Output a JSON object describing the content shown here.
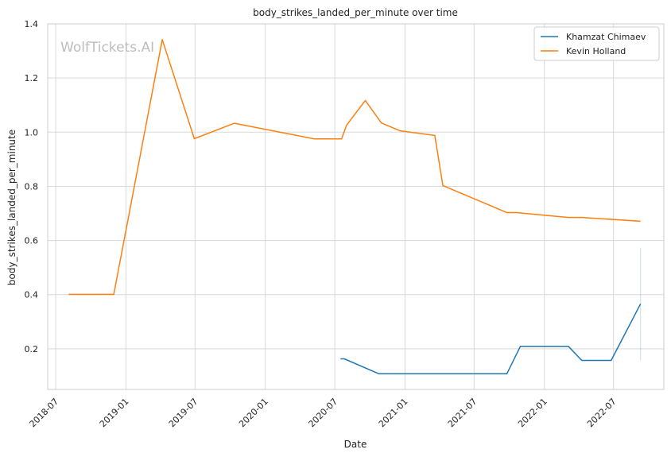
{
  "chart_data": {
    "type": "line",
    "title": "body_strikes_landed_per_minute over time",
    "xlabel": "Date",
    "ylabel": "body_strikes_landed_per_minute",
    "watermark": "WolfTickets.AI",
    "xlim": [
      "2018-06-10",
      "2022-11-10"
    ],
    "ylim": [
      0.05,
      1.4
    ],
    "x_ticks": [
      "2018-07",
      "2019-01",
      "2019-07",
      "2020-01",
      "2020-07",
      "2021-01",
      "2021-07",
      "2022-01",
      "2022-07"
    ],
    "y_ticks": [
      0.2,
      0.4,
      0.6,
      0.8,
      1.0,
      1.2,
      1.4
    ],
    "y_tick_labels": [
      "0.2",
      "0.4",
      "0.6",
      "0.8",
      "1.0",
      "1.2",
      "1.4"
    ],
    "grid": true,
    "legend_position": "top-right",
    "series": [
      {
        "name": "Khamzat Chimaev",
        "color": "#1f77b4",
        "points": [
          {
            "x": "2020-07-16",
            "y": 0.163
          },
          {
            "x": "2020-07-26",
            "y": 0.163
          },
          {
            "x": "2020-10-24",
            "y": 0.108
          },
          {
            "x": "2021-09-25",
            "y": 0.108
          },
          {
            "x": "2021-10-30",
            "y": 0.209
          },
          {
            "x": "2022-03-05",
            "y": 0.209
          },
          {
            "x": "2022-04-09",
            "y": 0.157
          },
          {
            "x": "2022-06-25",
            "y": 0.157
          },
          {
            "x": "2022-09-10",
            "y": 0.366
          }
        ]
      },
      {
        "name": "Kevin Holland",
        "color": "#ff7f0e",
        "points": [
          {
            "x": "2018-08-04",
            "y": 0.401
          },
          {
            "x": "2018-11-30",
            "y": 0.401
          },
          {
            "x": "2019-04-06",
            "y": 1.342
          },
          {
            "x": "2019-06-29",
            "y": 0.976
          },
          {
            "x": "2019-10-12",
            "y": 1.033
          },
          {
            "x": "2020-05-09",
            "y": 0.975
          },
          {
            "x": "2020-07-19",
            "y": 0.975
          },
          {
            "x": "2020-08-01",
            "y": 1.026
          },
          {
            "x": "2020-09-19",
            "y": 1.117
          },
          {
            "x": "2020-10-31",
            "y": 1.034
          },
          {
            "x": "2020-12-19",
            "y": 1.005
          },
          {
            "x": "2021-03-20",
            "y": 0.988
          },
          {
            "x": "2021-04-10",
            "y": 0.803
          },
          {
            "x": "2021-09-25",
            "y": 0.703
          },
          {
            "x": "2021-10-20",
            "y": 0.703
          },
          {
            "x": "2022-03-05",
            "y": 0.685
          },
          {
            "x": "2022-04-09",
            "y": 0.685
          },
          {
            "x": "2022-09-10",
            "y": 0.671
          }
        ]
      }
    ],
    "error_band": {
      "series": "Khamzat Chimaev",
      "x": "2022-09-10",
      "low": 0.158,
      "high": 0.574
    }
  }
}
